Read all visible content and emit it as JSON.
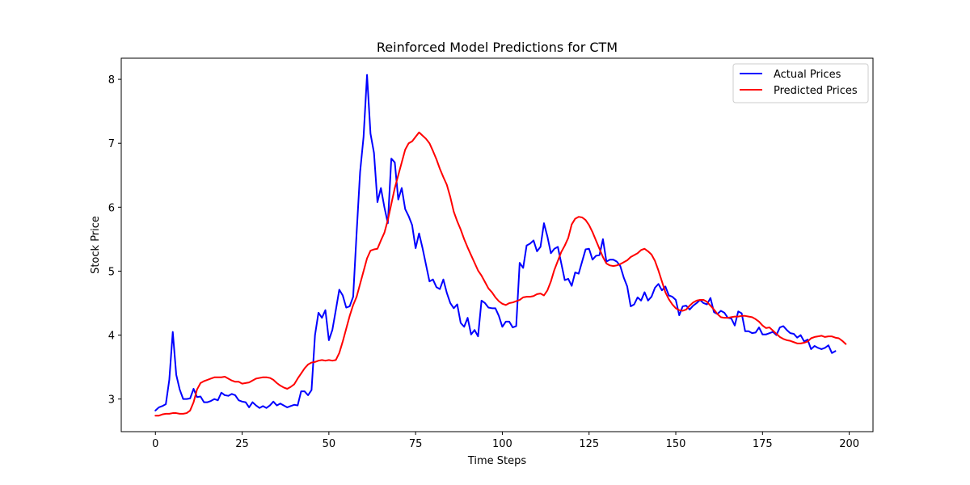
{
  "chart_data": {
    "type": "line",
    "title": "Reinforced Model Predictions for CTM",
    "xlabel": "Time Steps",
    "ylabel": "Stock Price",
    "xlim": [
      -9.85,
      206.85
    ],
    "ylim": [
      2.49,
      8.33
    ],
    "xticks": [
      0,
      25,
      50,
      75,
      100,
      125,
      150,
      175,
      200
    ],
    "xtick_labels": [
      "0",
      "25",
      "50",
      "75",
      "100",
      "125",
      "150",
      "175",
      "200"
    ],
    "yticks": [
      3,
      4,
      5,
      6,
      7,
      8
    ],
    "ytick_labels": [
      "3",
      "4",
      "5",
      "6",
      "7",
      "8"
    ],
    "grid": false,
    "legend_position": "top-right",
    "series": [
      {
        "name": "Actual Prices",
        "color": "#0000ff",
        "values": [
          2.82,
          2.87,
          2.89,
          2.92,
          3.3,
          4.05,
          3.38,
          3.15,
          3.0,
          3.0,
          3.01,
          3.16,
          3.03,
          3.04,
          2.95,
          2.95,
          2.97,
          3.0,
          2.98,
          3.1,
          3.06,
          3.05,
          3.08,
          3.06,
          2.98,
          2.96,
          2.95,
          2.87,
          2.95,
          2.9,
          2.86,
          2.89,
          2.86,
          2.9,
          2.96,
          2.9,
          2.93,
          2.9,
          2.87,
          2.89,
          2.91,
          2.9,
          3.12,
          3.12,
          3.06,
          3.14,
          4.0,
          4.35,
          4.27,
          4.39,
          3.92,
          4.08,
          4.39,
          4.71,
          4.62,
          4.43,
          4.45,
          4.6,
          5.6,
          6.55,
          7.1,
          8.07,
          7.15,
          6.85,
          6.08,
          6.3,
          6.0,
          5.75,
          6.76,
          6.7,
          6.12,
          6.3,
          5.97,
          5.86,
          5.72,
          5.36,
          5.59,
          5.36,
          5.1,
          4.84,
          4.87,
          4.75,
          4.72,
          4.87,
          4.66,
          4.5,
          4.42,
          4.48,
          4.19,
          4.13,
          4.27,
          4.01,
          4.08,
          3.98,
          4.54,
          4.5,
          4.43,
          4.42,
          4.42,
          4.3,
          4.13,
          4.21,
          4.21,
          4.12,
          4.14,
          5.13,
          5.05,
          5.4,
          5.43,
          5.48,
          5.31,
          5.38,
          5.75,
          5.54,
          5.28,
          5.35,
          5.38,
          5.12,
          4.86,
          4.88,
          4.77,
          4.98,
          4.96,
          5.15,
          5.34,
          5.35,
          5.18,
          5.24,
          5.25,
          5.5,
          5.15,
          5.18,
          5.18,
          5.15,
          5.08,
          4.9,
          4.76,
          4.45,
          4.48,
          4.59,
          4.54,
          4.67,
          4.54,
          4.6,
          4.74,
          4.8,
          4.7,
          4.76,
          4.62,
          4.6,
          4.55,
          4.31,
          4.45,
          4.46,
          4.4,
          4.46,
          4.5,
          4.55,
          4.5,
          4.48,
          4.58,
          4.36,
          4.33,
          4.38,
          4.35,
          4.27,
          4.26,
          4.15,
          4.37,
          4.34,
          4.06,
          4.06,
          4.03,
          4.04,
          4.12,
          4.01,
          4.01,
          4.03,
          4.05,
          4.0,
          4.12,
          4.14,
          4.08,
          4.03,
          4.02,
          3.96,
          4.0,
          3.9,
          3.93,
          3.78,
          3.83,
          3.8,
          3.78,
          3.8,
          3.84,
          3.72,
          3.75
        ]
      },
      {
        "name": "Predicted Prices",
        "color": "#ff0000",
        "values": [
          2.74,
          2.74,
          2.76,
          2.77,
          2.77,
          2.78,
          2.78,
          2.77,
          2.77,
          2.78,
          2.82,
          2.95,
          3.15,
          3.25,
          3.28,
          3.3,
          3.32,
          3.34,
          3.34,
          3.34,
          3.35,
          3.32,
          3.29,
          3.27,
          3.27,
          3.24,
          3.25,
          3.26,
          3.29,
          3.32,
          3.33,
          3.34,
          3.34,
          3.33,
          3.3,
          3.25,
          3.21,
          3.18,
          3.16,
          3.19,
          3.23,
          3.32,
          3.4,
          3.48,
          3.54,
          3.57,
          3.58,
          3.6,
          3.61,
          3.6,
          3.61,
          3.6,
          3.61,
          3.72,
          3.9,
          4.1,
          4.3,
          4.47,
          4.6,
          4.8,
          5.0,
          5.2,
          5.32,
          5.34,
          5.35,
          5.48,
          5.6,
          5.8,
          6.05,
          6.3,
          6.5,
          6.7,
          6.9,
          7.0,
          7.03,
          7.1,
          7.17,
          7.12,
          7.07,
          7.0,
          6.88,
          6.75,
          6.6,
          6.47,
          6.35,
          6.16,
          5.93,
          5.78,
          5.65,
          5.5,
          5.37,
          5.25,
          5.13,
          5.01,
          4.93,
          4.83,
          4.73,
          4.67,
          4.59,
          4.53,
          4.49,
          4.47,
          4.5,
          4.51,
          4.53,
          4.55,
          4.59,
          4.6,
          4.6,
          4.61,
          4.64,
          4.65,
          4.62,
          4.7,
          4.84,
          5.02,
          5.16,
          5.3,
          5.4,
          5.52,
          5.73,
          5.82,
          5.85,
          5.84,
          5.8,
          5.72,
          5.61,
          5.48,
          5.35,
          5.22,
          5.12,
          5.09,
          5.08,
          5.09,
          5.11,
          5.14,
          5.17,
          5.22,
          5.25,
          5.28,
          5.33,
          5.35,
          5.31,
          5.26,
          5.16,
          5.01,
          4.84,
          4.67,
          4.56,
          4.48,
          4.42,
          4.39,
          4.38,
          4.4,
          4.46,
          4.51,
          4.54,
          4.55,
          4.55,
          4.52,
          4.46,
          4.4,
          4.33,
          4.28,
          4.27,
          4.27,
          4.28,
          4.29,
          4.29,
          4.3,
          4.3,
          4.29,
          4.28,
          4.25,
          4.21,
          4.15,
          4.11,
          4.12,
          4.07,
          4.02,
          3.97,
          3.94,
          3.92,
          3.91,
          3.89,
          3.87,
          3.87,
          3.88,
          3.9,
          3.95,
          3.97,
          3.98,
          3.99,
          3.97,
          3.98,
          3.98,
          3.96,
          3.95,
          3.91,
          3.86
        ]
      }
    ]
  }
}
